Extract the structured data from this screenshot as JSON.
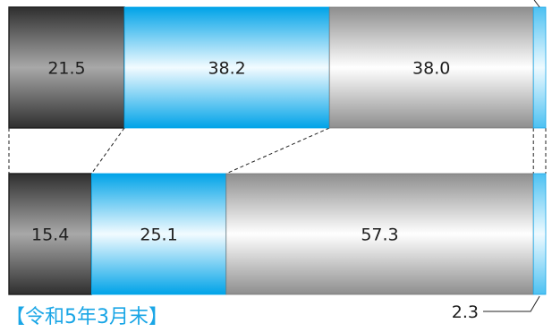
{
  "chart_data": {
    "type": "bar",
    "orientation": "horizontal",
    "stacked": true,
    "percent": true,
    "bars": [
      {
        "label": "",
        "values": [
          21.5,
          38.2,
          38.0,
          2.3
        ]
      },
      {
        "label": "令和5年3月末",
        "values": [
          15.4,
          25.1,
          57.3,
          2.3
        ]
      }
    ],
    "segment_styles": [
      "dark-gray",
      "blue",
      "light-gray",
      "light-blue"
    ],
    "segment_colors": [
      "#3a3a3a",
      "#00a3e8",
      "#8c8c8c",
      "#7fd0f5"
    ],
    "callout": {
      "text": "2.3",
      "bar": 1,
      "segment": 3
    },
    "connectors": "dashed"
  },
  "labels": {
    "period": "【令和5年3月末】"
  }
}
